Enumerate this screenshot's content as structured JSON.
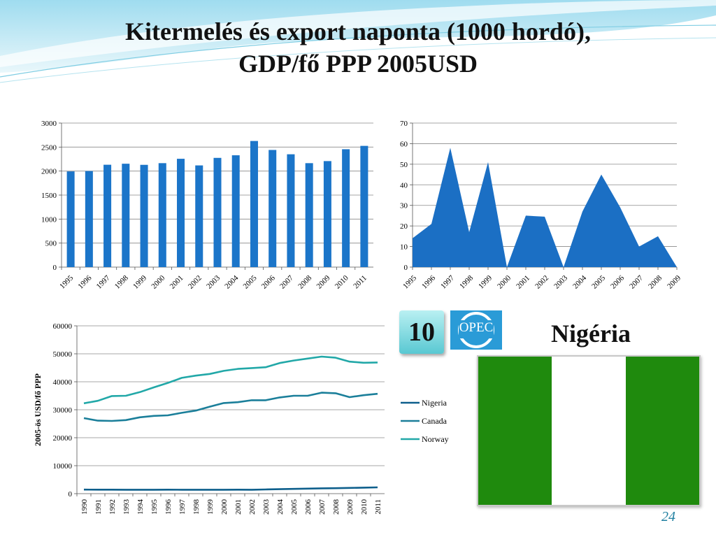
{
  "slide": {
    "title_line1": "Kitermelés és export naponta (1000 hordó),",
    "title_line2": "GDP/fő PPP 2005USD",
    "opec_rank": "10",
    "opec_label": "OPEC",
    "country": "Nigéria",
    "page_number": "24",
    "flag_colors": [
      "#1f8a0d",
      "#ffffff",
      "#1f8a0d"
    ]
  },
  "chart_data": [
    {
      "type": "bar",
      "categories": [
        "1995",
        "1996",
        "1997",
        "1998",
        "1999",
        "2000",
        "2001",
        "2002",
        "2003",
        "2004",
        "2005",
        "2006",
        "2007",
        "2008",
        "2009",
        "2010",
        "2011"
      ],
      "values": [
        1993,
        2001,
        2132,
        2153,
        2130,
        2165,
        2256,
        2118,
        2275,
        2329,
        2627,
        2440,
        2350,
        2165,
        2208,
        2455,
        2525
      ],
      "ylim": [
        0,
        3000
      ],
      "yticks": [
        0,
        500,
        1000,
        1500,
        2000,
        2500,
        3000
      ],
      "color": "#1b75c9",
      "grid": true
    },
    {
      "type": "area",
      "categories": [
        "1995",
        "1996",
        "1997",
        "1998",
        "1999",
        "2000",
        "2001",
        "2002",
        "2003",
        "2004",
        "2005",
        "2006",
        "2007",
        "2008",
        "2009"
      ],
      "values": [
        14,
        21,
        58,
        17,
        51,
        0,
        25,
        24.5,
        0,
        27,
        45,
        29,
        10,
        15,
        0
      ],
      "ylim": [
        0,
        70
      ],
      "yticks": [
        0,
        10,
        20,
        30,
        40,
        50,
        60,
        70
      ],
      "color": "#1b6fc4",
      "grid": true
    },
    {
      "type": "line",
      "x": [
        "1990",
        "1991",
        "1992",
        "1993",
        "1994",
        "1995",
        "1996",
        "1997",
        "1998",
        "1999",
        "2000",
        "2001",
        "2002",
        "2003",
        "2004",
        "2005",
        "2006",
        "2007",
        "2008",
        "2009",
        "2010",
        "2011"
      ],
      "ylabel": "2005-ös USD/fő PPP",
      "ylim": [
        0,
        60000
      ],
      "yticks": [
        0,
        10000,
        20000,
        30000,
        40000,
        50000,
        60000
      ],
      "legend_position": "right",
      "grid": true,
      "series": [
        {
          "name": "Nigeria",
          "color": "#0e5f8c",
          "values": [
            1450,
            1420,
            1430,
            1400,
            1380,
            1400,
            1420,
            1400,
            1400,
            1380,
            1400,
            1420,
            1400,
            1500,
            1600,
            1700,
            1800,
            1900,
            1950,
            2050,
            2150,
            2250
          ]
        },
        {
          "name": "Canada",
          "color": "#1b7f9a",
          "values": [
            27000,
            26100,
            26000,
            26300,
            27300,
            27800,
            28000,
            28900,
            29700,
            31100,
            32400,
            32700,
            33400,
            33400,
            34400,
            35000,
            35000,
            36100,
            35900,
            34500,
            35200,
            35700
          ]
        },
        {
          "name": "Norway",
          "color": "#22a8a8",
          "values": [
            32300,
            33200,
            34900,
            35000,
            36300,
            38000,
            39600,
            41400,
            42200,
            42800,
            43900,
            44600,
            44900,
            45200,
            46700,
            47600,
            48300,
            49000,
            48600,
            47200,
            46800,
            46900
          ]
        }
      ]
    }
  ]
}
